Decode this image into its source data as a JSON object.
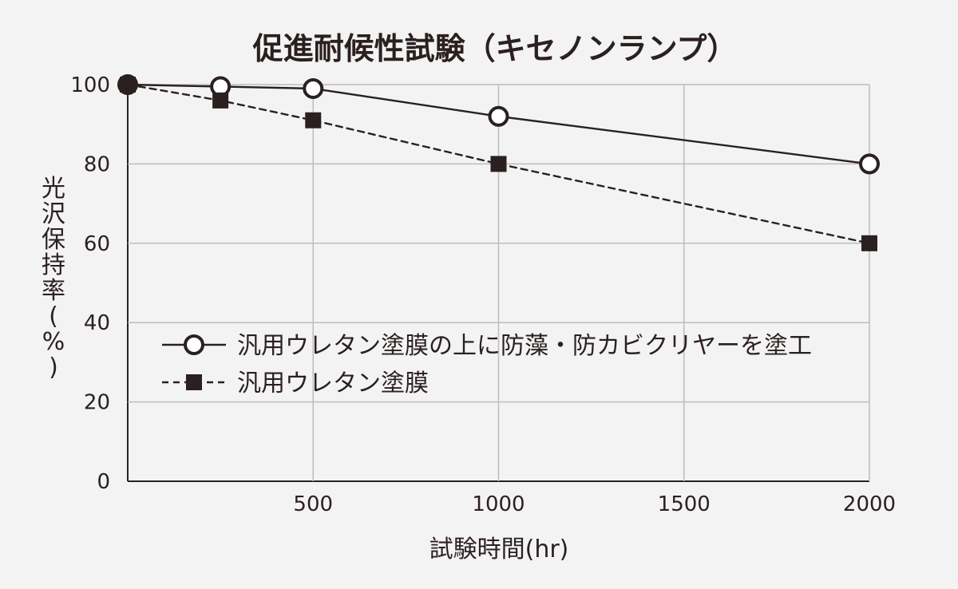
{
  "chart_data": {
    "type": "line",
    "title": "促進耐候性試験（キセノンランプ）",
    "xlabel": "試験時間(hr)",
    "ylabel": "光沢保持率(%)",
    "xlim": [
      0,
      2000
    ],
    "ylim": [
      0,
      100
    ],
    "xticks": [
      500,
      1000,
      1500,
      2000
    ],
    "yticks": [
      0,
      20,
      40,
      60,
      80,
      100
    ],
    "grid": true,
    "legend_position": "middle-left",
    "series": [
      {
        "name": "汎用ウレタン塗膜の上に防藻・防カビクリヤーを塗工",
        "marker": "open-circle",
        "line_style": "solid",
        "color": "#2b2020",
        "x": [
          0,
          250,
          500,
          1000,
          2000
        ],
        "y": [
          100,
          99.5,
          99,
          92,
          80
        ]
      },
      {
        "name": "汎用ウレタン塗膜",
        "marker": "filled-square",
        "line_style": "dashed",
        "color": "#2b2020",
        "x": [
          0,
          250,
          500,
          1000,
          2000
        ],
        "y": [
          100,
          96,
          91,
          80,
          60
        ]
      }
    ]
  }
}
